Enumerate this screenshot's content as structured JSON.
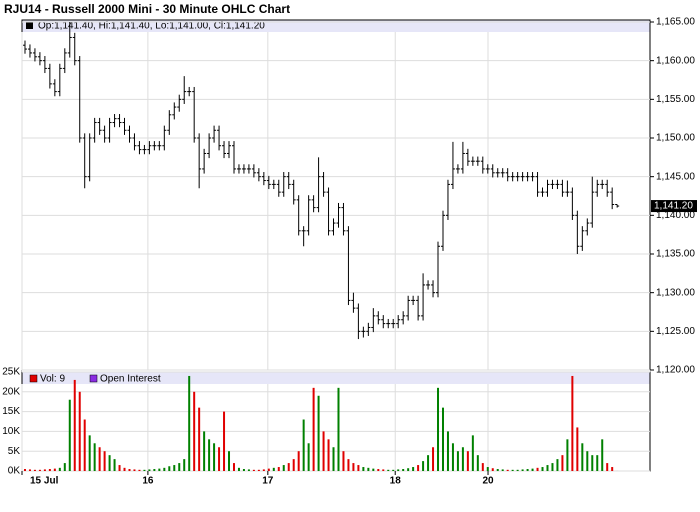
{
  "chart_data": {
    "type": "ohlc",
    "title": "RJU14 - Russell 2000 Mini - 30 Minute OHLC Chart",
    "price_legend": "Op:1,141.40, Hi:1,141.40, Lo:1,141.00, Cl:1,141.20",
    "last_label": {
      "value": 1141.2,
      "label": "1,141.20"
    },
    "volume_legend": [
      "Vol: 9",
      "Open Interest"
    ],
    "volume_legend_colors": [
      "#e00000",
      "#8a2be2"
    ],
    "bar_color": "#000000",
    "up_color": "#008000",
    "down_color": "#e00000",
    "grid": true,
    "xlim": [
      -0.6,
      125.6
    ],
    "xticks": [
      {
        "value": -0.6,
        "label": "15 Jul"
      },
      {
        "value": 24.7,
        "label": "16"
      },
      {
        "value": 48.8,
        "label": "17"
      },
      {
        "value": 74.4,
        "label": "18"
      },
      {
        "value": 93.05,
        "label": "20"
      }
    ],
    "ylim": [
      1120,
      1165
    ],
    "yticks": [
      {
        "value": 1120,
        "label": "1,120.00"
      },
      {
        "value": 1125,
        "label": "1,125.00"
      },
      {
        "value": 1130,
        "label": "1,130.00"
      },
      {
        "value": 1135,
        "label": "1,135.00"
      },
      {
        "value": 1140,
        "label": "1,140.00"
      },
      {
        "value": 1145,
        "label": "1,145.00"
      },
      {
        "value": 1150,
        "label": "1,150.00"
      },
      {
        "value": 1155,
        "label": "1,155.00"
      },
      {
        "value": 1160,
        "label": "1,160.00"
      },
      {
        "value": 1165,
        "label": "1,165.00"
      }
    ],
    "vlim": [
      0,
      25000
    ],
    "vticks": [
      {
        "value": 0,
        "label": "0K"
      },
      {
        "value": 5000,
        "label": "5K"
      },
      {
        "value": 10000,
        "label": "10K"
      },
      {
        "value": 15000,
        "label": "15K"
      },
      {
        "value": 20000,
        "label": "20K"
      },
      {
        "value": 25000,
        "label": "25K"
      }
    ],
    "open": [
      1162,
      1161.5,
      1161,
      1160.5,
      1160,
      1159,
      1157,
      1156,
      1159,
      1161,
      1163,
      1160,
      1150,
      1145,
      1150,
      1152,
      1151,
      1150,
      1152,
      1152.5,
      1152,
      1151,
      1150,
      1149,
      1148.5,
      1148.5,
      1149,
      1149,
      1149,
      1151,
      1153,
      1154,
      1155,
      1156,
      1156,
      1150,
      1146,
      1148,
      1150,
      1151,
      1149,
      1148,
      1149,
      1146,
      1146,
      1146,
      1146,
      1145.5,
      1145,
      1144.5,
      1144,
      1144,
      1143,
      1145,
      1144,
      1142,
      1138,
      1138,
      1142,
      1141,
      1145,
      1143,
      1138,
      1139,
      1141,
      1138,
      1129,
      1128,
      1125,
      1125,
      1125.5,
      1127,
      1126.5,
      1126,
      1126,
      1126,
      1126.5,
      1127,
      1129,
      1129,
      1127,
      1131,
      1131,
      1130,
      1136,
      1140,
      1144,
      1146,
      1146,
      1148,
      1147,
      1147,
      1147,
      1146,
      1146,
      1145.5,
      1145.5,
      1145.5,
      1145,
      1145,
      1145,
      1145,
      1145,
      1145,
      1143,
      1143,
      1144,
      1144,
      1144,
      1143,
      1143,
      1140,
      1136,
      1138,
      1139,
      1143,
      1144,
      1144,
      1143,
      1141.4
    ],
    "high": [
      1162.6,
      1162.1,
      1161.6,
      1161.1,
      1160.6,
      1159.6,
      1157.6,
      1159.6,
      1161.6,
      1165,
      1163.6,
      1160.6,
      1150.6,
      1150.6,
      1152.6,
      1152.6,
      1151.6,
      1152.6,
      1153.1,
      1153.1,
      1152.6,
      1151.6,
      1150.6,
      1149.6,
      1149.1,
      1149.6,
      1149.6,
      1149.6,
      1151.6,
      1153.6,
      1154.6,
      1155.6,
      1158,
      1156.6,
      1156.6,
      1150.6,
      1148.6,
      1150.6,
      1151.6,
      1151.6,
      1149.6,
      1149.6,
      1149.6,
      1146.6,
      1146.6,
      1146.6,
      1146.6,
      1146.1,
      1145.6,
      1145.1,
      1144.6,
      1144.6,
      1145.6,
      1145.6,
      1144.6,
      1142.6,
      1138.6,
      1142.6,
      1142.6,
      1147.5,
      1145.6,
      1143.6,
      1139.6,
      1141.6,
      1141.6,
      1138.6,
      1130,
      1128.6,
      1125.6,
      1126.1,
      1128,
      1127.6,
      1127.1,
      1126.6,
      1126.6,
      1127.1,
      1127.6,
      1129.6,
      1129.6,
      1129.6,
      1132.5,
      1131.6,
      1131.6,
      1136.6,
      1140.6,
      1144.6,
      1149.5,
      1146.6,
      1149.5,
      1148.6,
      1147.6,
      1147.6,
      1147.6,
      1146.6,
      1146.6,
      1146.1,
      1146.1,
      1146.1,
      1145.6,
      1145.6,
      1145.6,
      1145.6,
      1145.6,
      1145.6,
      1143.6,
      1144.6,
      1144.6,
      1144.6,
      1144.6,
      1144.5,
      1143.6,
      1140.6,
      1138.6,
      1139.6,
      1145,
      1144.6,
      1144.6,
      1144.6,
      1143.6,
      1141.4
    ],
    "low": [
      1160.9,
      1160.4,
      1159.9,
      1159.4,
      1158.4,
      1156.4,
      1155.4,
      1155.4,
      1158.4,
      1160.4,
      1159.4,
      1149.4,
      1143.5,
      1144.4,
      1149.4,
      1150.4,
      1149.4,
      1149.4,
      1151.4,
      1151.4,
      1150.4,
      1149.4,
      1148.4,
      1147.9,
      1147.9,
      1147.9,
      1148.4,
      1148.4,
      1148.4,
      1150.4,
      1152.4,
      1153.4,
      1154.4,
      1155.4,
      1149.4,
      1143.5,
      1145.4,
      1147.4,
      1149.4,
      1148.4,
      1147.4,
      1147.4,
      1145.4,
      1145.4,
      1145.4,
      1145.4,
      1144.9,
      1144.4,
      1143.9,
      1143.4,
      1143.4,
      1142.4,
      1142.4,
      1143.4,
      1141.4,
      1137.4,
      1136,
      1137.4,
      1140.4,
      1140.4,
      1142.4,
      1137.4,
      1137.4,
      1138.4,
      1137.4,
      1128.4,
      1127.4,
      1124,
      1124.2,
      1124.4,
      1124.9,
      1125.9,
      1125.4,
      1125.4,
      1125.4,
      1125.4,
      1125.9,
      1126.4,
      1128.4,
      1126.4,
      1126.4,
      1130.4,
      1129.4,
      1129.4,
      1135.4,
      1139.4,
      1143.4,
      1145.4,
      1145.4,
      1146.4,
      1146.4,
      1146.4,
      1145.4,
      1145.4,
      1144.9,
      1144.9,
      1144.9,
      1144.4,
      1144.4,
      1144.4,
      1144.4,
      1144.4,
      1144.4,
      1142.4,
      1142.4,
      1142.4,
      1143.4,
      1143.4,
      1142.4,
      1142.4,
      1139.4,
      1135,
      1135.4,
      1137.4,
      1138.4,
      1142.4,
      1143.4,
      1142.4,
      1140.8,
      1141
    ],
    "close": [
      1161.5,
      1161,
      1160.5,
      1160,
      1159,
      1157,
      1156,
      1159,
      1161,
      1163,
      1160,
      1150,
      1145,
      1150,
      1152,
      1151,
      1150,
      1152,
      1152.5,
      1152,
      1151,
      1150,
      1149,
      1148.5,
      1148.5,
      1149,
      1149,
      1149,
      1151,
      1153,
      1154,
      1155,
      1156,
      1156,
      1150,
      1146,
      1148,
      1150,
      1151,
      1149,
      1148,
      1149,
      1146,
      1146,
      1146,
      1146,
      1145.5,
      1145,
      1144.5,
      1144,
      1144,
      1143,
      1145,
      1144,
      1142,
      1138,
      1138,
      1142,
      1141,
      1145,
      1143,
      1138,
      1139,
      1141,
      1138,
      1129,
      1128,
      1125,
      1125,
      1125.5,
      1127,
      1126.5,
      1126,
      1126,
      1126,
      1126.5,
      1127,
      1129,
      1129,
      1127,
      1131,
      1131,
      1130,
      1136,
      1140,
      1144,
      1146,
      1146,
      1148,
      1147,
      1147,
      1147,
      1146,
      1146,
      1145.5,
      1145.5,
      1145.5,
      1145,
      1145,
      1145,
      1145,
      1145,
      1145,
      1143,
      1143,
      1144,
      1144,
      1144,
      1143,
      1143,
      1140,
      1136,
      1138,
      1139,
      1143,
      1144,
      1144,
      1143,
      1141.4,
      1141.2
    ],
    "volume": [
      500,
      400,
      300,
      300,
      400,
      500,
      600,
      800,
      2000,
      18000,
      23000,
      20000,
      13000,
      9000,
      7000,
      6000,
      5000,
      4000,
      3000,
      1500,
      800,
      500,
      400,
      300,
      300,
      400,
      500,
      600,
      800,
      1200,
      1500,
      2000,
      3000,
      24000,
      20000,
      16000,
      10000,
      8000,
      7000,
      6000,
      15000,
      5000,
      2000,
      800,
      500,
      400,
      300,
      300,
      400,
      600,
      800,
      1000,
      1500,
      2000,
      3000,
      5000,
      13000,
      7000,
      21000,
      19000,
      10000,
      8000,
      6000,
      21000,
      5000,
      3000,
      2000,
      1500,
      1000,
      800,
      600,
      500,
      400,
      300,
      300,
      400,
      500,
      700,
      1000,
      1500,
      2500,
      4000,
      6000,
      21000,
      16000,
      10000,
      7000,
      5000,
      6000,
      5000,
      9000,
      4000,
      2000,
      1000,
      700,
      500,
      400,
      300,
      300,
      300,
      400,
      500,
      600,
      800,
      1000,
      1500,
      2000,
      3000,
      4000,
      8000,
      24000,
      11000,
      7000,
      5000,
      4000,
      4000,
      8000,
      2000,
      1000,
      9
    ]
  }
}
